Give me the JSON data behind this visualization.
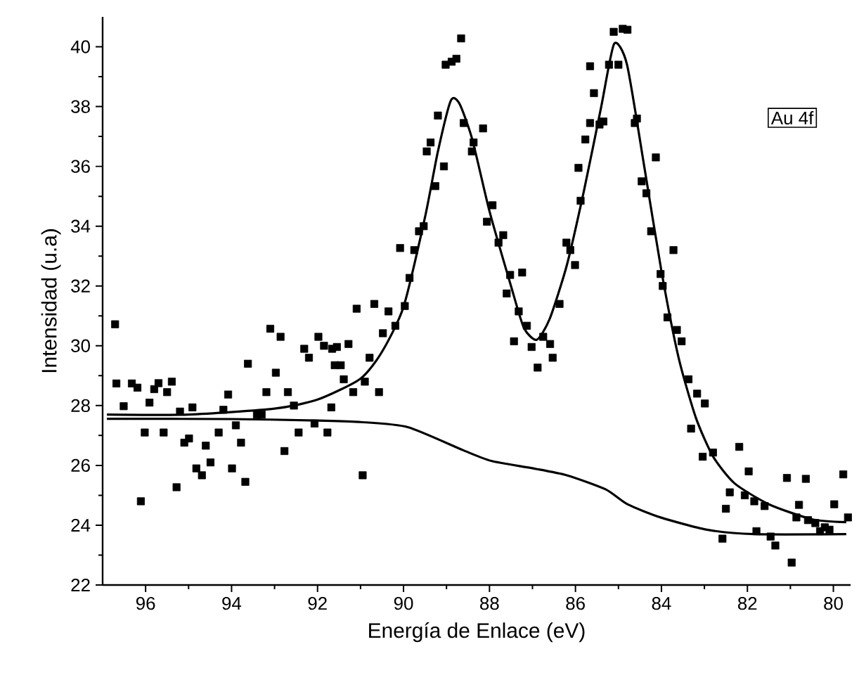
{
  "chart_data": {
    "type": "scatter",
    "xlabel": "Energía de Enlace (eV)",
    "ylabel": "Intensidad (u.a)",
    "annotations": [
      "Au 4f"
    ],
    "xlim": [
      97,
      79.6
    ],
    "ylim": [
      22,
      41
    ],
    "xticks": [
      96,
      94,
      92,
      90,
      88,
      86,
      84,
      82,
      80
    ],
    "yticks": [
      22,
      24,
      26,
      28,
      30,
      32,
      34,
      36,
      38,
      40
    ],
    "series": [
      {
        "marker": "square",
        "color": "#000000",
        "x": [
          96.71,
          96.68,
          96.51,
          96.32,
          96.19,
          96.11,
          96.02,
          95.91,
          95.8,
          95.7,
          95.58,
          95.5,
          95.39,
          95.28,
          95.2,
          95.1,
          94.99,
          94.91,
          94.82,
          94.69,
          94.6,
          94.49,
          94.3,
          94.19,
          94.08,
          93.99,
          93.9,
          93.78,
          93.68,
          93.62,
          93.41,
          93.3,
          93.19,
          93.1,
          92.97,
          92.86,
          92.77,
          92.69,
          92.55,
          92.44,
          92.31,
          92.2,
          92.07,
          91.98,
          91.85,
          91.77,
          91.66,
          91.6,
          91.68,
          91.55,
          91.28,
          91.46,
          91.39,
          91.17,
          90.95,
          91.09,
          90.9,
          90.79,
          90.68,
          90.57,
          90.48,
          90.35,
          90.19,
          90.08,
          89.97,
          89.86,
          89.75,
          89.64,
          89.53,
          89.46,
          89.37,
          89.26,
          89.2,
          89.06,
          89.02,
          88.88,
          88.77,
          88.66,
          88.6,
          88.41,
          88.37,
          88.15,
          88.06,
          87.93,
          87.79,
          87.68,
          87.6,
          87.52,
          87.24,
          87.43,
          87.32,
          87.13,
          87.02,
          86.88,
          86.75,
          86.59,
          86.53,
          86.37,
          86.21,
          86.12,
          86.01,
          85.88,
          85.93,
          85.77,
          85.66,
          85.57,
          85.66,
          85.44,
          85.35,
          85.22,
          85.0,
          85.11,
          84.9,
          84.79,
          84.62,
          84.57,
          84.13,
          84.46,
          84.35,
          84.24,
          83.72,
          84.02,
          83.97,
          83.86,
          83.64,
          83.53,
          83.37,
          83.17,
          82.99,
          83.31,
          83.04,
          82.8,
          82.19,
          81.97,
          82.41,
          82.5,
          82.06,
          81.84,
          81.6,
          82.58,
          81.79,
          81.46,
          81.35,
          80.97,
          81.08,
          80.64,
          80.8,
          80.86,
          80.59,
          80.42,
          80.31,
          80.2,
          79.98,
          79.77,
          79.66,
          80.09
        ],
        "values": [
          30.72,
          28.74,
          27.98,
          28.74,
          28.6,
          24.8,
          27.1,
          28.1,
          28.55,
          28.75,
          27.1,
          28.45,
          28.8,
          25.27,
          27.8,
          26.76,
          26.9,
          27.94,
          25.9,
          25.67,
          26.66,
          26.1,
          27.1,
          27.86,
          28.37,
          25.9,
          27.34,
          26.76,
          25.45,
          29.4,
          27.7,
          27.7,
          28.45,
          30.57,
          29.1,
          30.3,
          26.48,
          28.45,
          28.0,
          27.1,
          29.9,
          29.6,
          27.4,
          30.3,
          30.0,
          27.1,
          29.9,
          29.35,
          27.94,
          29.96,
          30.06,
          29.35,
          28.88,
          28.45,
          25.67,
          31.24,
          28.8,
          29.6,
          31.4,
          28.45,
          30.42,
          31.15,
          30.67,
          33.27,
          31.33,
          32.27,
          33.2,
          33.83,
          34.0,
          36.5,
          36.8,
          35.34,
          37.7,
          36.0,
          39.4,
          39.5,
          39.6,
          40.28,
          37.45,
          36.5,
          36.8,
          37.27,
          34.15,
          34.7,
          33.45,
          33.7,
          31.75,
          32.37,
          32.45,
          30.15,
          31.15,
          30.67,
          29.96,
          29.27,
          30.3,
          30.06,
          29.6,
          31.4,
          33.45,
          33.2,
          32.7,
          34.85,
          35.95,
          36.9,
          37.45,
          38.45,
          39.35,
          37.4,
          37.5,
          39.4,
          39.4,
          40.5,
          40.6,
          40.57,
          37.45,
          37.6,
          36.3,
          35.5,
          35.1,
          33.83,
          33.2,
          32.4,
          32.0,
          30.95,
          30.53,
          30.15,
          28.88,
          28.4,
          28.07,
          27.23,
          26.29,
          26.43,
          26.62,
          25.8,
          25.1,
          24.55,
          25.0,
          24.8,
          24.64,
          23.55,
          23.8,
          23.62,
          23.32,
          22.75,
          25.58,
          25.55,
          24.68,
          24.26,
          24.17,
          24.07,
          23.8,
          23.93,
          24.7,
          25.7,
          24.26,
          23.85
        ]
      },
      {
        "type": "line",
        "marker": "none",
        "line_style": "solid",
        "color": "#000000",
        "x": [
          96.9,
          95,
          93,
          92,
          91,
          90.5,
          90,
          89.5,
          89.2,
          88.9,
          88.7,
          88.4,
          88,
          87.5,
          87.2,
          86.9,
          86.6,
          86.2,
          85.8,
          85.4,
          85.1,
          84.8,
          84.4,
          84,
          83.6,
          83.2,
          82.8,
          82.3,
          81.5,
          80.5,
          79.7
        ],
        "values": [
          27.7,
          27.7,
          27.9,
          28.2,
          28.9,
          29.8,
          31.3,
          34.3,
          36.5,
          38.2,
          38.1,
          36.9,
          34.5,
          32.0,
          30.6,
          30.2,
          30.9,
          32.7,
          35.2,
          38.0,
          40.1,
          39.4,
          36.0,
          32.5,
          29.6,
          27.6,
          26.3,
          25.4,
          24.7,
          24.2,
          24.1
        ]
      },
      {
        "type": "line",
        "marker": "none",
        "line_style": "solid",
        "color": "#000000",
        "x": [
          96.9,
          94,
          92,
          91,
          89.9,
          88.6,
          87.96,
          86.98,
          86.2,
          85.3,
          84.79,
          84.02,
          82.94,
          81.84,
          79.7
        ],
        "values": [
          27.56,
          27.55,
          27.5,
          27.45,
          27.28,
          26.5,
          26.15,
          25.9,
          25.67,
          25.2,
          24.7,
          24.26,
          23.85,
          23.7,
          23.7
        ]
      }
    ]
  }
}
